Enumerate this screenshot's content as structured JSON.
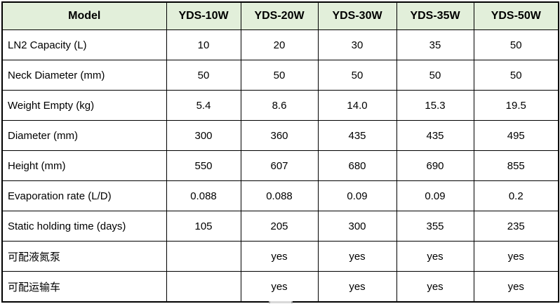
{
  "table": {
    "columns": [
      "Model",
      "YDS-10W",
      "YDS-20W",
      "YDS-30W",
      "YDS-35W",
      "YDS-50W"
    ],
    "rows": [
      {
        "label": "LN2 Capacity (L)",
        "values": [
          "10",
          "20",
          "30",
          "35",
          "50"
        ]
      },
      {
        "label": "Neck Diameter (mm)",
        "values": [
          "50",
          "50",
          "50",
          "50",
          "50"
        ]
      },
      {
        "label": "Weight Empty (kg)",
        "values": [
          "5.4",
          "8.6",
          "14.0",
          "15.3",
          "19.5"
        ]
      },
      {
        "label": "Diameter (mm)",
        "values": [
          "300",
          "360",
          "435",
          "435",
          "495"
        ]
      },
      {
        "label": "Height (mm)",
        "values": [
          "550",
          "607",
          "680",
          "690",
          "855"
        ]
      },
      {
        "label": "Evaporation rate (L/D)",
        "values": [
          "0.088",
          "0.088",
          "0.09",
          "0.09",
          "0.2"
        ]
      },
      {
        "label": "Static holding time (days)",
        "values": [
          "105",
          "205",
          "300",
          "355",
          "235"
        ]
      },
      {
        "label": "可配液氮泵",
        "values": [
          "",
          "yes",
          "yes",
          "yes",
          "yes"
        ]
      },
      {
        "label": "可配运输车",
        "values": [
          "",
          "yes",
          "yes",
          "yes",
          "yes"
        ]
      }
    ]
  },
  "colors": {
    "header_bg": "#e2efda",
    "border": "#000000",
    "text": "#000000"
  }
}
